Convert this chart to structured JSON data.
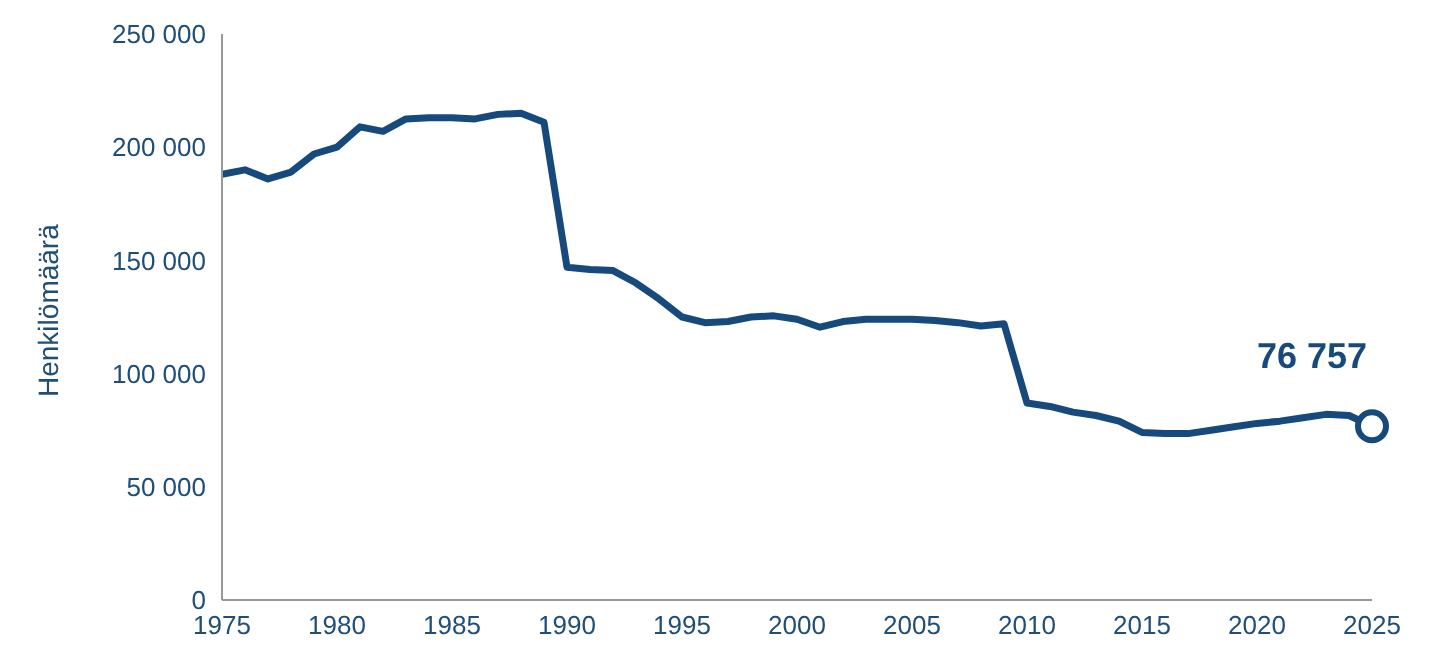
{
  "chart_data": {
    "type": "line",
    "ylabel": "Henkilömäärä",
    "x": [
      1975,
      1976,
      1977,
      1978,
      1979,
      1980,
      1981,
      1982,
      1983,
      1984,
      1985,
      1986,
      1987,
      1988,
      1989,
      1990,
      1991,
      1992,
      1993,
      1994,
      1995,
      1996,
      1997,
      1998,
      1999,
      2000,
      2001,
      2002,
      2003,
      2004,
      2005,
      2006,
      2007,
      2008,
      2009,
      2010,
      2011,
      2012,
      2013,
      2014,
      2015,
      2016,
      2017,
      2018,
      2019,
      2020,
      2021,
      2022,
      2023,
      2024,
      2025
    ],
    "series": [
      {
        "color": "#174a7c",
        "values": [
          188000,
          190000,
          186000,
          189000,
          197000,
          200000,
          209000,
          207000,
          212500,
          213000,
          213000,
          212500,
          214500,
          215000,
          211000,
          147000,
          146000,
          145500,
          140000,
          133000,
          125000,
          122500,
          123000,
          125000,
          125500,
          124000,
          120500,
          123000,
          124000,
          124000,
          124000,
          123500,
          122500,
          121000,
          122000,
          87000,
          85500,
          83000,
          81500,
          79000,
          74000,
          73500,
          73500,
          75000,
          76500,
          78000,
          79000,
          80500,
          82000,
          81500,
          76757
        ]
      }
    ],
    "xlim": [
      1975,
      2025
    ],
    "xticks": [
      1975,
      1980,
      1985,
      1990,
      1995,
      2000,
      2005,
      2010,
      2015,
      2020,
      2025
    ],
    "ylim": [
      0,
      250000
    ],
    "yticks": [
      {
        "value": 0,
        "label": "0"
      },
      {
        "value": 50000,
        "label": "50 000"
      },
      {
        "value": 100000,
        "label": "100 000"
      },
      {
        "value": 150000,
        "label": "150 000"
      },
      {
        "value": 200000,
        "label": "200 000"
      },
      {
        "value": 250000,
        "label": "250 000"
      }
    ],
    "annotations": [
      {
        "text": "76 757",
        "x": 2025,
        "y": 76757
      }
    ],
    "grid": false,
    "marker": "none",
    "line_style": "solid"
  }
}
